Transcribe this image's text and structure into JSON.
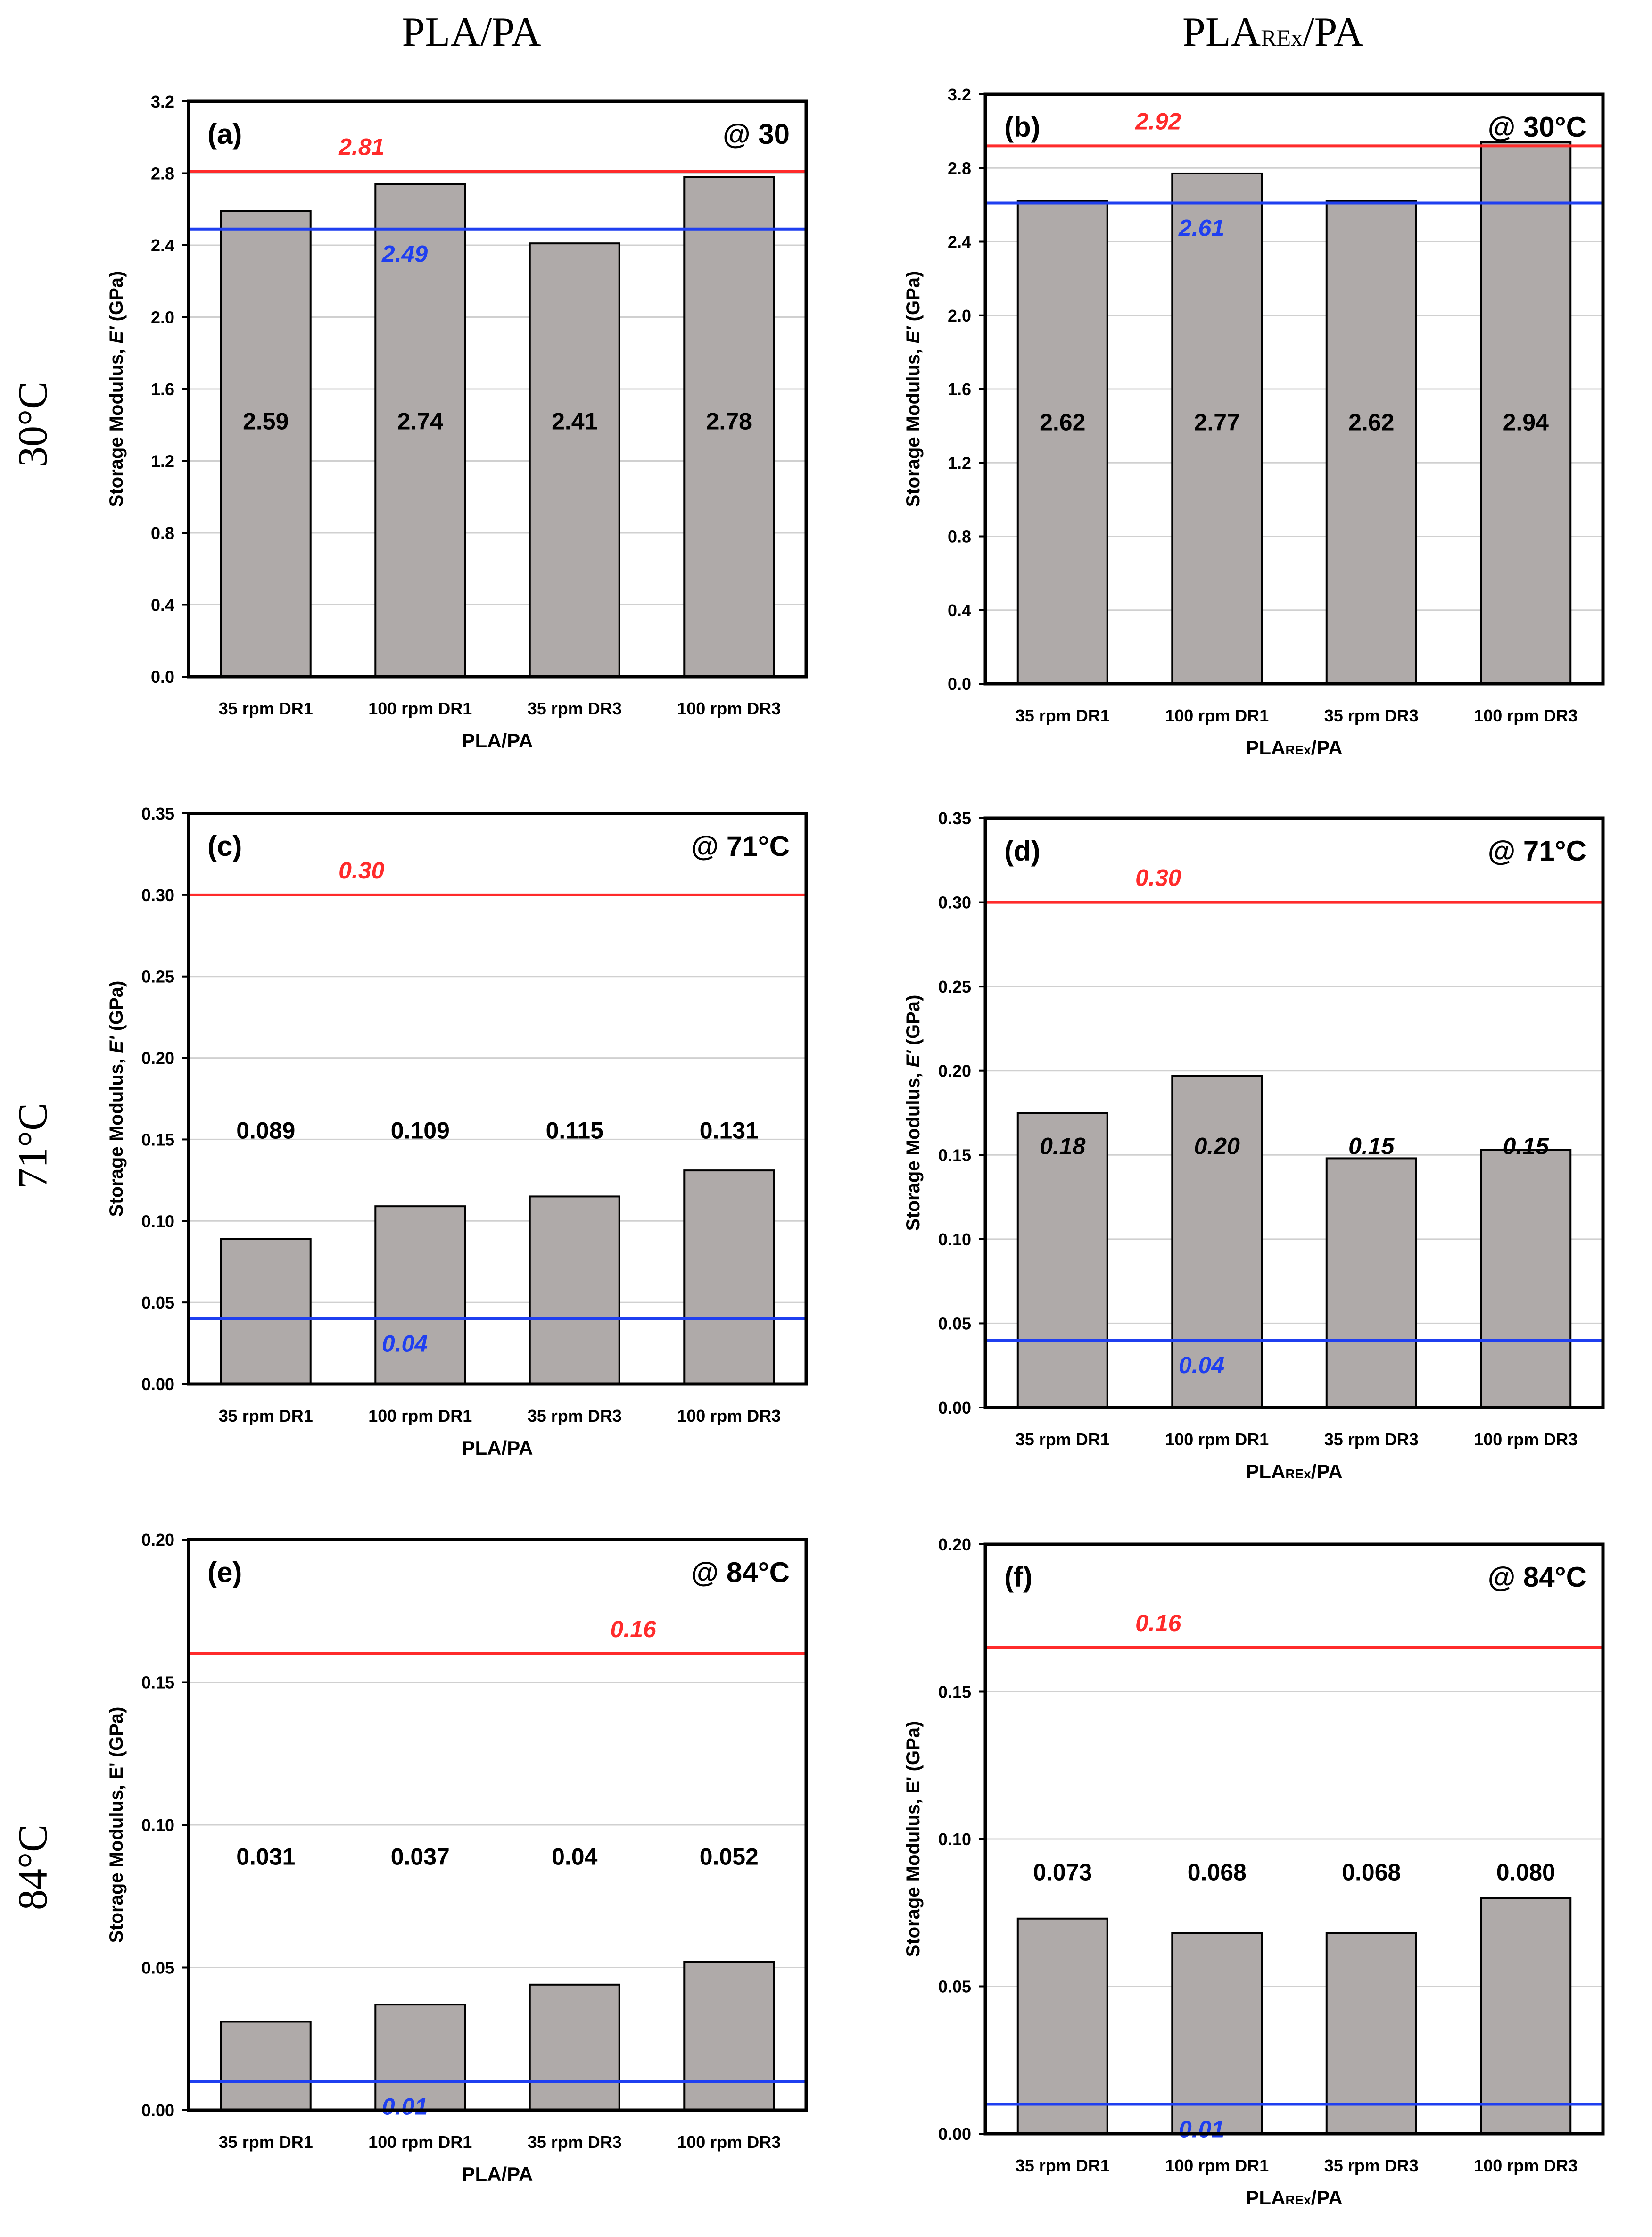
{
  "columns": [
    {
      "main": "PLA/PA",
      "sub": ""
    },
    {
      "main": "PLA",
      "sub": "REx",
      "tail": "/PA"
    }
  ],
  "rows": [
    "30°C",
    "71°C",
    "84°C"
  ],
  "colors": {
    "bar": "#afaaa9",
    "upper_line": "#ff2b2b",
    "lower_line": "#1f3ff0",
    "grid": "#d0d0d0",
    "frame": "#000000"
  },
  "chart_data": [
    {
      "type": "bar",
      "label": "(a)",
      "temperature": "@ 30",
      "categories": [
        "35 rpm DR1",
        "100 rpm DR1",
        "35 rpm DR3",
        "100 rpm DR3"
      ],
      "values": [
        2.59,
        2.74,
        2.41,
        2.78
      ],
      "value_labels": [
        "2.59",
        "2.74",
        "2.41",
        "2.78"
      ],
      "value_label_italic": false,
      "upper_ref": {
        "value": 2.81,
        "label": "2.81"
      },
      "lower_ref": {
        "value": 2.49,
        "label": "2.49"
      },
      "ylim": [
        0,
        3.2
      ],
      "yticks": [
        "0.0",
        "0.4",
        "0.8",
        "1.2",
        "1.6",
        "2.0",
        "2.4",
        "2.8",
        "3.2"
      ],
      "ytick_values": [
        0,
        0.4,
        0.8,
        1.2,
        1.6,
        2.0,
        2.4,
        2.8,
        3.2
      ],
      "ylabel": "Storage Modulus, ",
      "ylabel_em": "E'",
      "ylabel_unit": " (GPa)",
      "xlabel_main": "PLA/PA",
      "xlabel_sub": "",
      "xlabel_tail": ""
    },
    {
      "type": "bar",
      "label": "(b)",
      "temperature": "@ 30°C",
      "categories": [
        "35 rpm DR1",
        "100 rpm DR1",
        "35 rpm DR3",
        "100 rpm DR3"
      ],
      "values": [
        2.62,
        2.77,
        2.62,
        2.94
      ],
      "value_labels": [
        "2.62",
        "2.77",
        "2.62",
        "2.94"
      ],
      "value_label_italic": false,
      "upper_ref": {
        "value": 2.92,
        "label": "2.92"
      },
      "lower_ref": {
        "value": 2.61,
        "label": "2.61"
      },
      "ylim": [
        0,
        3.2
      ],
      "yticks": [
        "0.0",
        "0.4",
        "0.8",
        "1.2",
        "1.6",
        "2.0",
        "2.4",
        "2.8",
        "3.2"
      ],
      "ytick_values": [
        0,
        0.4,
        0.8,
        1.2,
        1.6,
        2.0,
        2.4,
        2.8,
        3.2
      ],
      "ylabel": "Storage  Modulus, ",
      "ylabel_em": "E'",
      "ylabel_unit": " (GPa)",
      "xlabel_main": "PLA",
      "xlabel_sub": "REx",
      "xlabel_tail": "/PA"
    },
    {
      "type": "bar",
      "label": "(c)",
      "temperature": "@ 71°C",
      "categories": [
        "35 rpm DR1",
        "100 rpm DR1",
        "35 rpm DR3",
        "100 rpm DR3"
      ],
      "values": [
        0.089,
        0.109,
        0.115,
        0.131
      ],
      "value_labels": [
        "0.089",
        "0.109",
        "0.115",
        "0.131"
      ],
      "value_label_italic": false,
      "upper_ref": {
        "value": 0.3,
        "label": "0.30"
      },
      "lower_ref": {
        "value": 0.04,
        "label": "0.04"
      },
      "ylim": [
        0,
        0.35
      ],
      "yticks": [
        "0.00",
        "0.05",
        "0.10",
        "0.15",
        "0.20",
        "0.25",
        "0.30",
        "0.35"
      ],
      "ytick_values": [
        0,
        0.05,
        0.1,
        0.15,
        0.2,
        0.25,
        0.3,
        0.35
      ],
      "ylabel": "Storage Modulus, ",
      "ylabel_em": "E'",
      "ylabel_unit": " (GPa)",
      "xlabel_main": "PLA/PA",
      "xlabel_sub": "",
      "xlabel_tail": ""
    },
    {
      "type": "bar",
      "label": "(d)",
      "temperature": "@ 71°C",
      "categories": [
        "35 rpm DR1",
        "100 rpm DR1",
        "35 rpm DR3",
        "100 rpm DR3"
      ],
      "values": [
        0.175,
        0.197,
        0.148,
        0.153
      ],
      "value_labels": [
        "0.18",
        "0.20",
        "0.15",
        "0.15"
      ],
      "value_label_italic": true,
      "upper_ref": {
        "value": 0.3,
        "label": "0.30"
      },
      "lower_ref": {
        "value": 0.04,
        "label": "0.04"
      },
      "ylim": [
        0,
        0.35
      ],
      "yticks": [
        "0.00",
        "0.05",
        "0.10",
        "0.15",
        "0.20",
        "0.25",
        "0.30",
        "0.35"
      ],
      "ytick_values": [
        0,
        0.05,
        0.1,
        0.15,
        0.2,
        0.25,
        0.3,
        0.35
      ],
      "ylabel": "Storage Modulus, ",
      "ylabel_em": "E'",
      "ylabel_unit": " (GPa)",
      "xlabel_main": "PLA",
      "xlabel_sub": "REx",
      "xlabel_tail": "/PA"
    },
    {
      "type": "bar",
      "label": "(e)",
      "temperature": "@ 84°C",
      "categories": [
        "35 rpm DR1",
        "100 rpm DR1",
        "35 rpm DR3",
        "100 rpm DR3"
      ],
      "values": [
        0.031,
        0.037,
        0.044,
        0.052
      ],
      "value_labels": [
        "0.031",
        "0.037",
        "0.04",
        "0.052"
      ],
      "value_label_italic": false,
      "upper_ref": {
        "value": 0.16,
        "label": "0.16"
      },
      "lower_ref": {
        "value": 0.01,
        "label": "0.01"
      },
      "ylim": [
        0,
        0.2
      ],
      "yticks": [
        "0.00",
        "0.05",
        "0.10",
        "0.15",
        "0.20"
      ],
      "ytick_values": [
        0,
        0.05,
        0.1,
        0.15,
        0.2
      ],
      "ylabel": "Storage Modulus, E' (GPa)",
      "ylabel_em": "",
      "ylabel_unit": "",
      "xlabel_main": "PLA/PA",
      "xlabel_sub": "",
      "xlabel_tail": ""
    },
    {
      "type": "bar",
      "label": "(f)",
      "temperature": "@ 84°C",
      "categories": [
        "35 rpm DR1",
        "100 rpm DR1",
        "35 rpm DR3",
        "100 rpm DR3"
      ],
      "values": [
        0.073,
        0.068,
        0.068,
        0.08
      ],
      "value_labels": [
        "0.073",
        "0.068",
        "0.068",
        "0.080"
      ],
      "value_label_italic": false,
      "upper_ref": {
        "value": 0.165,
        "label": "0.16"
      },
      "lower_ref": {
        "value": 0.01,
        "label": "0.01"
      },
      "ylim": [
        0,
        0.2
      ],
      "yticks": [
        "0.00",
        "0.05",
        "0.10",
        "0.15",
        "0.20"
      ],
      "ytick_values": [
        0,
        0.05,
        0.1,
        0.15,
        0.2
      ],
      "ylabel": "Storage Modulus, E' (GPa)",
      "ylabel_em": "",
      "ylabel_unit": "",
      "xlabel_main": "PLA",
      "xlabel_sub": "REx",
      "xlabel_tail": "/PA"
    }
  ]
}
